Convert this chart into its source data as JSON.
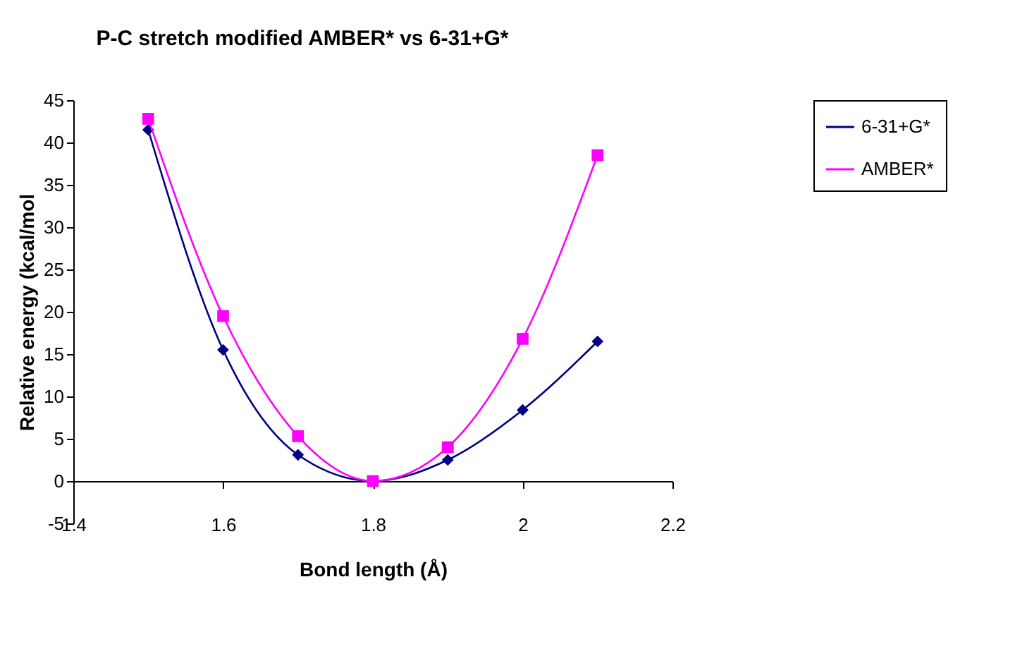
{
  "chart_data": {
    "type": "line",
    "title": "P-C stretch modified AMBER* vs 6-31+G*",
    "xlabel": "Bond length (Å)",
    "ylabel": "Relative energy (kcal/mol",
    "x": [
      1.5,
      1.6,
      1.7,
      1.8,
      1.9,
      2.0,
      2.1
    ],
    "series": [
      {
        "name": "6-31+G*",
        "color": "#000080",
        "marker": "diamond",
        "values": [
          41.5,
          15.5,
          3.1,
          0,
          2.5,
          8.4,
          16.5
        ]
      },
      {
        "name": "AMBER*",
        "color": "#ff00ff",
        "marker": "square",
        "values": [
          42.8,
          19.5,
          5.3,
          0,
          4.0,
          16.8,
          38.5
        ]
      }
    ],
    "xlim": [
      1.4,
      2.2
    ],
    "xticks": [
      1.4,
      1.6,
      1.8,
      2,
      2.2
    ],
    "ylim": [
      -5,
      45
    ],
    "yticks": [
      -5,
      0,
      5,
      10,
      15,
      20,
      25,
      30,
      35,
      40,
      45
    ],
    "grid": false,
    "legend": "right",
    "line_style": "solid"
  }
}
